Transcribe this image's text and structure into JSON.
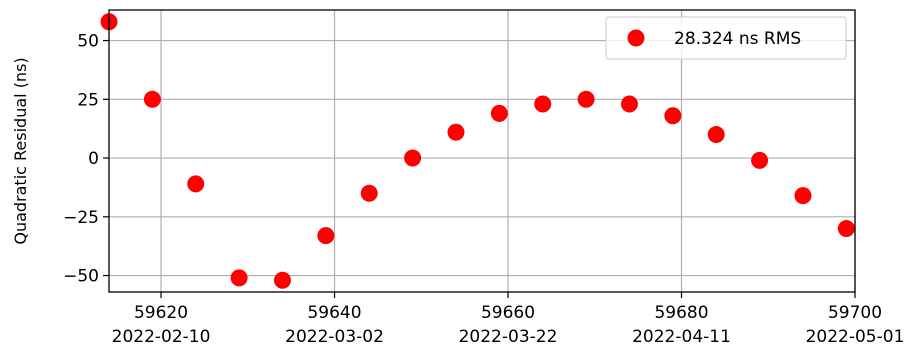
{
  "chart_data": {
    "type": "scatter",
    "ylabel": "Quadratic Residual (ns)",
    "xlabel": "",
    "xlim": [
      59614,
      59700
    ],
    "ylim": [
      -57,
      63
    ],
    "grid": true,
    "legend_position": "top-right",
    "marker_color": "#ff0000",
    "x_ticks": [
      {
        "value": 59620,
        "label": "59620",
        "date": "2022-02-10"
      },
      {
        "value": 59640,
        "label": "59640",
        "date": "2022-03-02"
      },
      {
        "value": 59660,
        "label": "59660",
        "date": "2022-03-22"
      },
      {
        "value": 59680,
        "label": "59680",
        "date": "2022-04-11"
      },
      {
        "value": 59700,
        "label": "59700",
        "date": "2022-05-01"
      }
    ],
    "y_ticks": [
      {
        "value": 50,
        "label": "50"
      },
      {
        "value": 25,
        "label": "25"
      },
      {
        "value": 0,
        "label": "0"
      },
      {
        "value": -25,
        "label": "−25"
      },
      {
        "value": -50,
        "label": "−50"
      }
    ],
    "series": [
      {
        "name": "28.324 ns RMS",
        "color": "#ff0000",
        "points": [
          {
            "x": 59614,
            "y": 58
          },
          {
            "x": 59619,
            "y": 25
          },
          {
            "x": 59624,
            "y": -11
          },
          {
            "x": 59629,
            "y": -51
          },
          {
            "x": 59634,
            "y": -52
          },
          {
            "x": 59639,
            "y": -33
          },
          {
            "x": 59644,
            "y": -15
          },
          {
            "x": 59649,
            "y": 0
          },
          {
            "x": 59654,
            "y": 11
          },
          {
            "x": 59659,
            "y": 19
          },
          {
            "x": 59664,
            "y": 23
          },
          {
            "x": 59669,
            "y": 25
          },
          {
            "x": 59674,
            "y": 23
          },
          {
            "x": 59679,
            "y": 18
          },
          {
            "x": 59684,
            "y": 10
          },
          {
            "x": 59689,
            "y": -1
          },
          {
            "x": 59694,
            "y": -16
          },
          {
            "x": 59699,
            "y": -30
          }
        ]
      }
    ]
  }
}
